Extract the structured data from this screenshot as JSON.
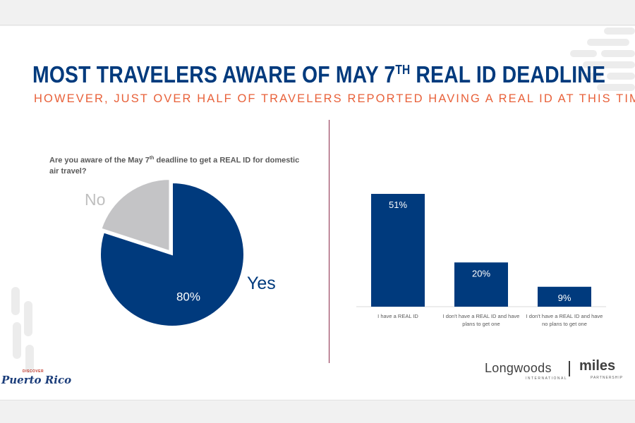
{
  "slide": {
    "title_main": "MOST TRAVELERS AWARE OF MAY 7",
    "title_sup": "TH",
    "title_rest": " REAL ID DEADLINE",
    "subtitle": "HOWEVER, JUST OVER HALF OF TRAVELERS REPORTED HAVING A REAL ID AT THIS TIME"
  },
  "question": {
    "line1_a": "Are you aware of the May 7",
    "line1_sup": "th",
    "line1_b": " deadline to get a REAL ID for domestic",
    "line2": "air travel?"
  },
  "logos": {
    "puerto_rico_small": "DISCOVER",
    "puerto_rico": "Puerto Rico",
    "longwoods": "Longwoods",
    "longwoods_sub": "INTERNATIONAL",
    "miles": "miles",
    "miles_sub": "PARTNERSHIP"
  },
  "colors": {
    "primary": "#003a7d",
    "accent": "#e8613a",
    "gray_slice": "#c4c4c6"
  },
  "chart_data": [
    {
      "type": "pie",
      "labels": [
        "Yes",
        "No"
      ],
      "values": [
        80,
        20
      ],
      "data_labels": [
        "80%",
        ""
      ],
      "colors": [
        "#003a7d",
        "#c4c4c6"
      ],
      "exploded": "No"
    },
    {
      "type": "bar",
      "categories": [
        [
          "I have a REAL ID"
        ],
        [
          "I don't have a REAL ID and have",
          "plans to get one"
        ],
        [
          "I don't have a REAL ID and have",
          "no plans to get one"
        ]
      ],
      "values": [
        51,
        20,
        9
      ],
      "data_labels": [
        "51%",
        "20%",
        "9%"
      ],
      "color": "#003a7d",
      "ylim": [
        0,
        51
      ]
    }
  ]
}
